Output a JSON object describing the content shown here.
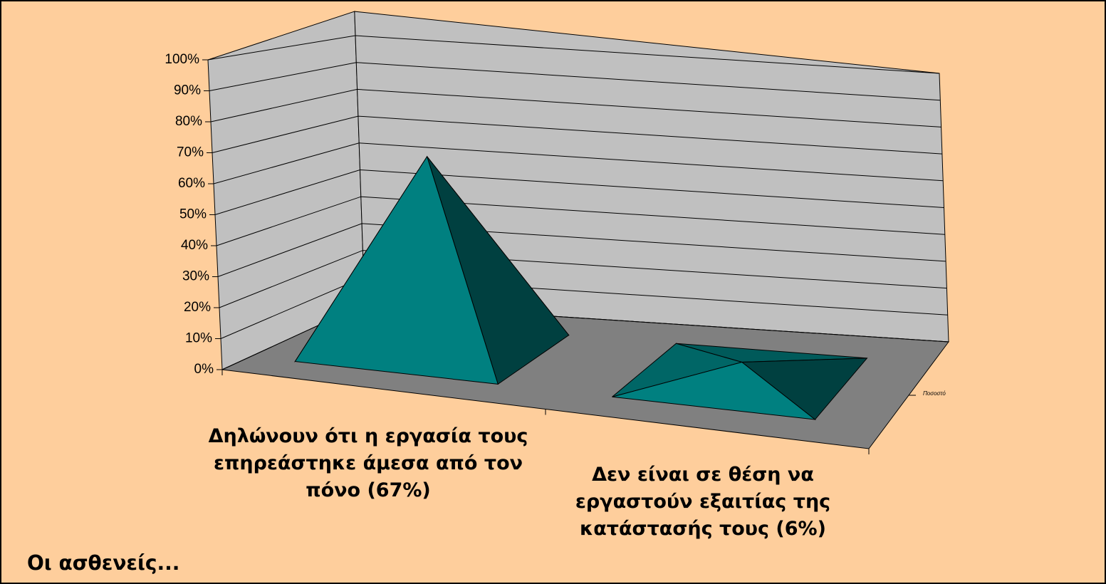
{
  "chart_data": {
    "type": "pyramid3d",
    "title": "Οι ασθενείς...",
    "categories": [
      "Δηλώνουν ότι η εργασία τους επηρεάστηκε άμεσα από τον πόνο (67%)",
      "Δεν είναι σε θέση να εργαστούν εξαιτίας της κατάστασής τους (6%)"
    ],
    "series": [
      {
        "name": "Ποσοστό",
        "color": "#008080",
        "values": [
          67,
          6
        ]
      }
    ],
    "ylim": [
      0,
      100
    ],
    "yticks": [
      {
        "value": 0,
        "label": "0%"
      },
      {
        "value": 10,
        "label": "10%"
      },
      {
        "value": 20,
        "label": "20%"
      },
      {
        "value": 30,
        "label": "30%"
      },
      {
        "value": 40,
        "label": "40%"
      },
      {
        "value": 50,
        "label": "50%"
      },
      {
        "value": 60,
        "label": "60%"
      },
      {
        "value": 70,
        "label": "70%"
      },
      {
        "value": 80,
        "label": "80%"
      },
      {
        "value": 90,
        "label": "90%"
      },
      {
        "value": 100,
        "label": "100%"
      }
    ],
    "grid": true
  }
}
